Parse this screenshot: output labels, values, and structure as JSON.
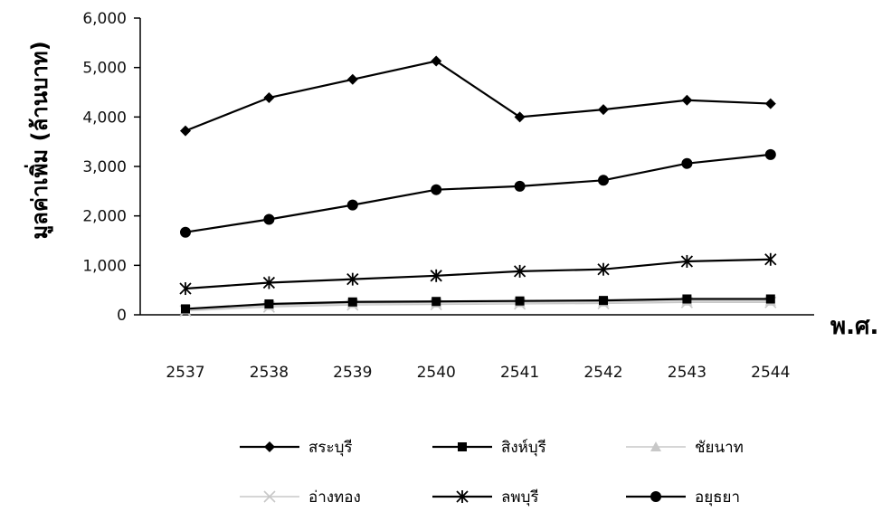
{
  "chart_data": {
    "type": "line",
    "title": "",
    "ylabel": "มูลค่าเพิ่ม (ล้านบาท)",
    "xlabel": "พ.ศ.",
    "categories": [
      "2537",
      "2538",
      "2539",
      "2540",
      "2541",
      "2542",
      "2543",
      "2544"
    ],
    "ylim": [
      0,
      6000
    ],
    "yticks": [
      "0",
      "1,000",
      "2,000",
      "3,000",
      "4,000",
      "5,000",
      "6,000"
    ],
    "ytick_values": [
      0,
      1000,
      2000,
      3000,
      4000,
      5000,
      6000
    ],
    "grid": false,
    "legend_position": "bottom",
    "series": [
      {
        "name": "สระบุรี",
        "marker": "diamond",
        "color": "#000000",
        "values": [
          3720,
          4390,
          4760,
          5130,
          4000,
          4150,
          4340,
          4270
        ]
      },
      {
        "name": "สิงห์บุรี",
        "marker": "square",
        "color": "#000000",
        "values": [
          120,
          220,
          260,
          270,
          280,
          290,
          320,
          320
        ]
      },
      {
        "name": "ชัยนาท",
        "marker": "triangle",
        "color": "#c8c8c8",
        "values": [
          100,
          190,
          230,
          240,
          250,
          260,
          280,
          280
        ]
      },
      {
        "name": "อ่างทอง",
        "marker": "x",
        "color": "#c8c8c8",
        "values": [
          80,
          160,
          200,
          210,
          220,
          230,
          250,
          250
        ]
      },
      {
        "name": "ลพบุรี",
        "marker": "star",
        "color": "#000000",
        "values": [
          530,
          650,
          720,
          790,
          880,
          920,
          1080,
          1120
        ]
      },
      {
        "name": "อยุธยา",
        "marker": "circle",
        "color": "#000000",
        "values": [
          1670,
          1930,
          2220,
          2530,
          2600,
          2720,
          3060,
          3240
        ]
      }
    ]
  }
}
